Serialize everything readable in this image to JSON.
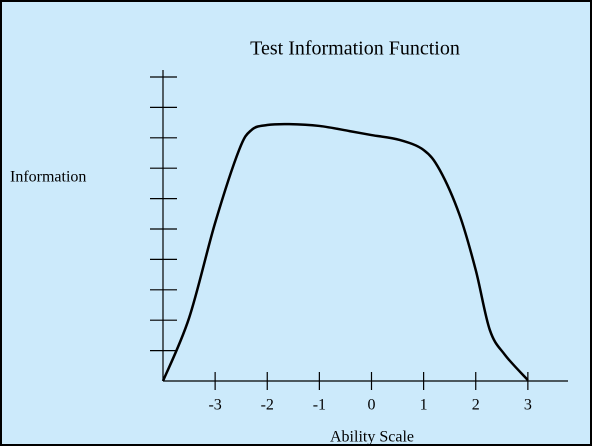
{
  "chart_data": {
    "type": "line",
    "title": "Test Information Function",
    "xlabel": "Ability Scale",
    "ylabel": "Information",
    "x": [
      -4,
      -3.5,
      -3,
      -2.54,
      -2.3,
      -2,
      -1.58,
      -1,
      -0.42,
      0,
      0.54,
      1,
      1.31,
      1.69,
      2,
      2.27,
      2.56,
      3
    ],
    "series": [
      {
        "color": "#000000",
        "values": [
          0,
          2.07,
          5.2,
          7.6,
          8.26,
          8.42,
          8.45,
          8.39,
          8.22,
          8.09,
          7.93,
          7.6,
          6.94,
          5.46,
          3.65,
          1.68,
          0.86,
          0.03
        ]
      }
    ],
    "xlim": [
      -4,
      3.77
    ],
    "xticks": [
      -3,
      -2,
      -1,
      0,
      1,
      2,
      3
    ],
    "ylim": [
      0,
      10.23
    ],
    "yticks": [
      1,
      2,
      3,
      4,
      5,
      6,
      7,
      8,
      9,
      10
    ],
    "background": "#cceafb"
  }
}
